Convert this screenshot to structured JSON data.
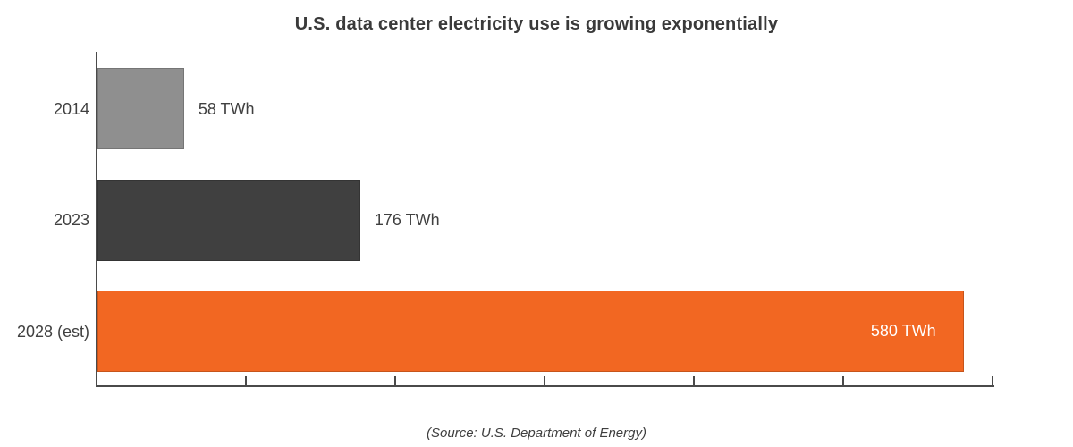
{
  "chart_data": {
    "type": "bar",
    "orientation": "horizontal",
    "title": "U.S. data center electricity use is growing exponentially",
    "source": "(Source: U.S. Department of Energy)",
    "categories": [
      "2014",
      "2023",
      "2028 (est)"
    ],
    "values": [
      58,
      176,
      580
    ],
    "value_labels": [
      "58 TWh",
      "176 TWh",
      "580 TWh"
    ],
    "unit": "TWh",
    "bar_colors": [
      "#8F8F8F",
      "#404040",
      "#F26722"
    ],
    "bar_textures": [
      "dotted",
      "solid",
      "solid"
    ],
    "value_label_placement": [
      "outside",
      "outside",
      "inside"
    ],
    "value_label_colors": [
      "#404040",
      "#404040",
      "#FFFFFF"
    ],
    "xlim": [
      0,
      600
    ],
    "x_tick_interval": 100,
    "x_tick_labels_visible": false,
    "grid": false,
    "legend": false,
    "axis_color": "#4a4a4a"
  }
}
